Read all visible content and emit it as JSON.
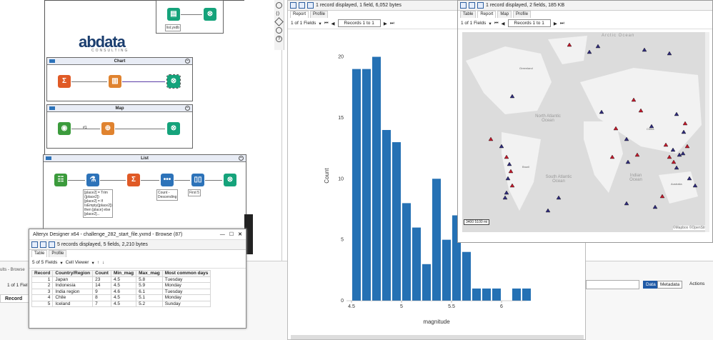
{
  "canvas": {
    "file_label": "list.yxdb",
    "logo_main": "abdata",
    "logo_sub": "CONSULTING",
    "containers": {
      "chart": "Chart",
      "map": "Map",
      "list": "List"
    },
    "map_conn_label": "#1",
    "list_notes": [
      "[place2] = Trim ([place2])\n[place2] = If IsEmpty([place2]) then [place] else [place2]...",
      "Count - Descending",
      "First 5"
    ]
  },
  "left_browse": {
    "title": "Alteryx Designer x64 - challenge_282_start_file.yxmd - Browse (87)",
    "status": "5 records displayed, 5 fields, 2,210 bytes",
    "tabs": [
      "Table",
      "Profile"
    ],
    "fields_label": "5 of 5 Fields",
    "viewer_label": "Cell Viewer",
    "columns": [
      "Record",
      "Country/Region",
      "Count",
      "Min_mag",
      "Max_mag",
      "Most common days"
    ],
    "rows": [
      [
        "1",
        "Japan",
        "23",
        "4.5",
        "5.8",
        "Tuesday"
      ],
      [
        "2",
        "Indonesia",
        "14",
        "4.5",
        "5.9",
        "Monday"
      ],
      [
        "3",
        "India region",
        "9",
        "4.6",
        "6.1",
        "Tuesday"
      ],
      [
        "4",
        "Chile",
        "8",
        "4.5",
        "5.1",
        "Monday"
      ],
      [
        "5",
        "Iceland",
        "7",
        "4.5",
        "5.2",
        "Sunday"
      ]
    ]
  },
  "chart_browse": {
    "status": "1 record displayed, 1 field, 6,052 bytes",
    "tabs": [
      "Report",
      "Profile"
    ],
    "pages": "1 of 1 Fields",
    "nav": "Records 1 to 1"
  },
  "map_browse": {
    "status": "1 record displayed, 2 fields, 185 KB",
    "tabs": [
      "Table",
      "Report",
      "Map",
      "Profile"
    ],
    "pages": "1 of 1 Fields",
    "nav": "Records 1 to 1",
    "labels": {
      "arctic": "Arctic Ocean",
      "north_atlantic": "North Atlantic Ocean",
      "south_atlantic": "South Atlantic Ocean",
      "indian": "Indian Ocean",
      "greenland": "Greenland",
      "brazil": "Brazil",
      "australia": "Australia",
      "china": "China"
    },
    "scale": "3400     5100 mi",
    "attribution": "©Mapbox ©OpenStr"
  },
  "bottom": {
    "results": "ults - Browse",
    "fields": "1 of 1 Fiel",
    "record_hdr": "Record",
    "data_btn": "Data",
    "meta_btn": "Metadata",
    "actions": "Actions"
  },
  "chart_data": {
    "type": "bar",
    "xlabel": "magnitude",
    "ylabel": "Count",
    "xlim": [
      4.45,
      6.25
    ],
    "ylim": [
      0,
      20.5
    ],
    "xticks": [
      4.5,
      5,
      5.5,
      6
    ],
    "yticks": [
      0,
      5,
      10,
      15,
      20
    ],
    "bins": [
      4.5,
      4.6,
      4.7,
      4.8,
      4.9,
      5.0,
      5.1,
      5.2,
      5.3,
      5.4,
      5.5,
      5.6,
      5.7,
      5.8,
      5.9,
      6.0,
      6.1,
      6.2
    ],
    "values": [
      19,
      19,
      20,
      14,
      13,
      8,
      6,
      3,
      10,
      5,
      7,
      4,
      1,
      1,
      1,
      0,
      1,
      1
    ],
    "color": "#2571b4"
  }
}
